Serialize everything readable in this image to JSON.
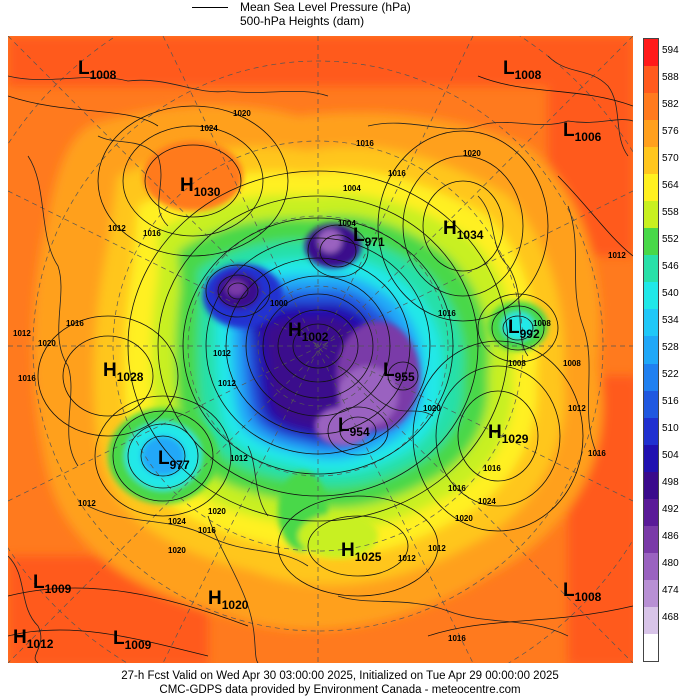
{
  "header": {
    "line1": "Mean Sea Level Pressure (hPa)",
    "line2": "500-hPa Heights (dam)"
  },
  "footer": {
    "line1": "27-h Fcst Valid on Wed Apr 30 03:00:00 2025, Initialized on Tue Apr 29 00:00:00 2025",
    "line2": "CMC-GDPS data provided by Environment Canada - meteocentre.com"
  },
  "colorbar": {
    "levels": [
      {
        "label": "594",
        "color": "#ff1a1a"
      },
      {
        "label": "588",
        "color": "#ff5a1e"
      },
      {
        "label": "582",
        "color": "#ff7a1e"
      },
      {
        "label": "576",
        "color": "#ffa01e"
      },
      {
        "label": "570",
        "color": "#ffc61e"
      },
      {
        "label": "564",
        "color": "#fff020"
      },
      {
        "label": "558",
        "color": "#c8f020"
      },
      {
        "label": "552",
        "color": "#48d848"
      },
      {
        "label": "546",
        "color": "#28e0a8"
      },
      {
        "label": "540",
        "color": "#20e8e8"
      },
      {
        "label": "534",
        "color": "#20c8f8"
      },
      {
        "label": "528",
        "color": "#20a8f8"
      },
      {
        "label": "522",
        "color": "#2080f0"
      },
      {
        "label": "516",
        "color": "#2058e0"
      },
      {
        "label": "510",
        "color": "#2030d0"
      },
      {
        "label": "504",
        "color": "#2010b0"
      },
      {
        "label": "498",
        "color": "#3a0a8c"
      },
      {
        "label": "492",
        "color": "#5a1a98"
      },
      {
        "label": "486",
        "color": "#7a3aa8"
      },
      {
        "label": "480",
        "color": "#9a62c0"
      },
      {
        "label": "474",
        "color": "#b890d4"
      },
      {
        "label": "468",
        "color": "#d8c4e8"
      },
      {
        "label": "",
        "color": "#ffffff"
      }
    ]
  },
  "pressure_systems": [
    {
      "type": "L",
      "value": "1008",
      "label": "L",
      "sub": "1008"
    },
    {
      "type": "L",
      "value": "1008",
      "label": "L",
      "sub": "1008"
    },
    {
      "type": "L",
      "value": "1006",
      "label": "L",
      "sub": "1006"
    },
    {
      "type": "H",
      "value": "1030",
      "label": "H",
      "sub": "1030"
    },
    {
      "type": "H",
      "value": "1034",
      "label": "H",
      "sub": "1034"
    },
    {
      "type": "L",
      "value": "971",
      "label": "L",
      "sub": "971"
    },
    {
      "type": "H",
      "value": "1028",
      "label": "H",
      "sub": "1028"
    },
    {
      "type": "H",
      "value": "1029",
      "label": "H",
      "sub": "1029"
    },
    {
      "type": "L",
      "value": "992",
      "label": "L",
      "sub": "992"
    },
    {
      "type": "L",
      "value": "977",
      "label": "L",
      "sub": "977"
    },
    {
      "type": "L",
      "value": "954",
      "label": "L",
      "sub": "954"
    },
    {
      "type": "L",
      "value": "955",
      "label": "L",
      "sub": "955"
    },
    {
      "type": "H",
      "value": "1025",
      "label": "H",
      "sub": "1025"
    },
    {
      "type": "L",
      "value": "1009",
      "label": "L",
      "sub": "1009"
    },
    {
      "type": "L",
      "value": "1009",
      "label": "L",
      "sub": "1009"
    },
    {
      "type": "H",
      "value": "1020",
      "label": "H",
      "sub": "1020"
    },
    {
      "type": "H",
      "value": "1012",
      "label": "H",
      "sub": "1012"
    },
    {
      "type": "L",
      "value": "1008",
      "label": "L",
      "sub": "1008"
    },
    {
      "type": "H",
      "value": "1002",
      "label": "H",
      "sub": "1002"
    }
  ],
  "isobar_labels": [
    "1024",
    "1020",
    "1016",
    "1012",
    "1004",
    "1016",
    "1024",
    "1020",
    "1012",
    "1020",
    "1016",
    "1012",
    "1016",
    "1020",
    "1008",
    "1012",
    "1016",
    "1004",
    "1000",
    "1012",
    "1016",
    "1012",
    "1020",
    "1024",
    "1012",
    "1016",
    "1020",
    "1016",
    "1008",
    "1012",
    "1012",
    "1020",
    "1016",
    "1008",
    "1012",
    "1016",
    "1016"
  ]
}
